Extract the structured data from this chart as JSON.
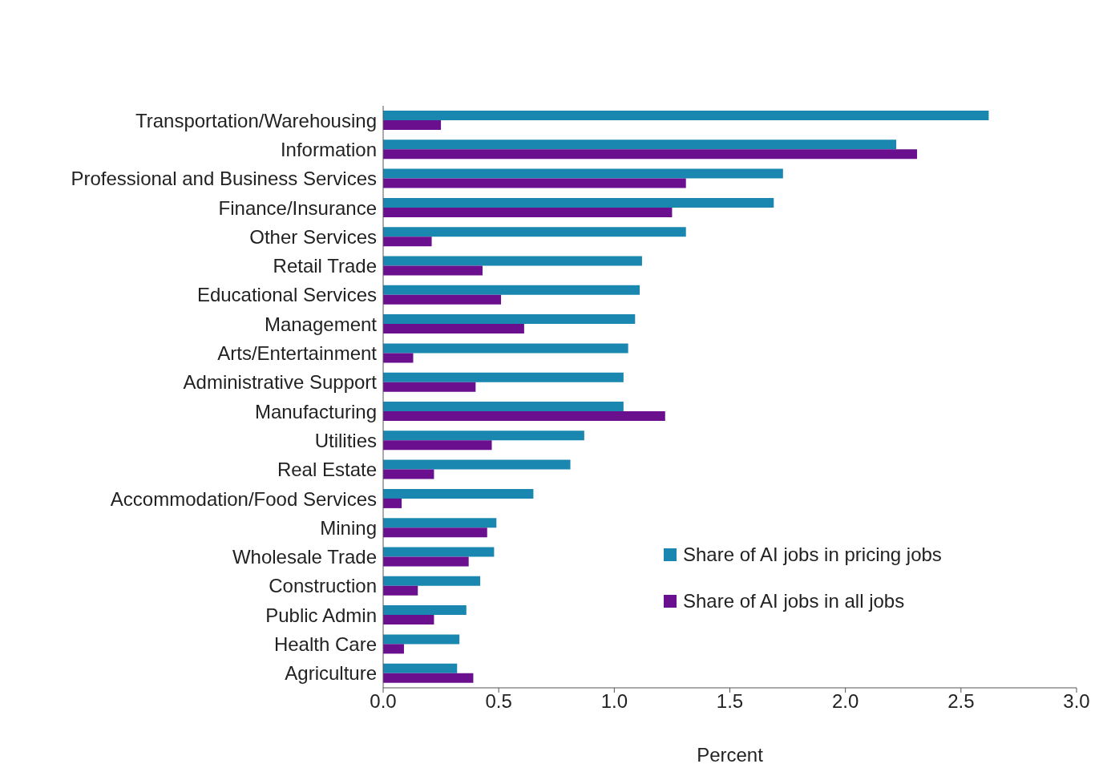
{
  "chart_data": {
    "type": "bar",
    "orientation": "horizontal",
    "xlabel": "Percent",
    "categories": [
      "Transportation/Warehousing",
      "Information",
      "Professional and Business Services",
      "Finance/Insurance",
      "Other Services",
      "Retail Trade",
      "Educational Services",
      "Management",
      "Arts/Entertainment",
      "Administrative Support",
      "Manufacturing",
      "Utilities",
      "Real Estate",
      "Accommodation/Food Services",
      "Mining",
      "Wholesale Trade",
      "Construction",
      "Public Admin",
      "Health Care",
      "Agriculture"
    ],
    "series": [
      {
        "name": "Share of AI jobs in pricing jobs",
        "color": "#1a87b0",
        "values": [
          2.62,
          2.22,
          1.73,
          1.69,
          1.31,
          1.12,
          1.11,
          1.09,
          1.06,
          1.04,
          1.04,
          0.87,
          0.81,
          0.65,
          0.49,
          0.48,
          0.42,
          0.36,
          0.33,
          0.32
        ]
      },
      {
        "name": "Share of AI jobs in all jobs",
        "color": "#6a0f8e",
        "values": [
          0.25,
          2.31,
          1.31,
          1.25,
          0.21,
          0.43,
          0.51,
          0.61,
          0.13,
          0.4,
          1.22,
          0.47,
          0.22,
          0.08,
          0.45,
          0.37,
          0.15,
          0.22,
          0.09,
          0.39
        ]
      }
    ],
    "xlim": [
      0,
      3
    ],
    "xticks": [
      {
        "value": 0,
        "label": "0.0"
      },
      {
        "value": 0.5,
        "label": "0.5"
      },
      {
        "value": 1,
        "label": "1.0"
      },
      {
        "value": 1.5,
        "label": "1.5"
      },
      {
        "value": 2,
        "label": "2.0"
      },
      {
        "value": 2.5,
        "label": "2.5"
      },
      {
        "value": 3,
        "label": "3.0"
      }
    ],
    "grid": false,
    "legend": "bottom right"
  }
}
